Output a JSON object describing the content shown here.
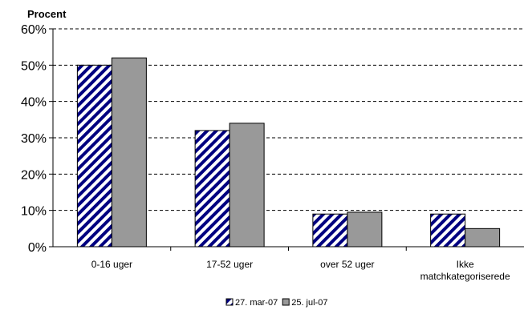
{
  "chart_data": {
    "type": "bar",
    "ylabel": "Procent",
    "categories": [
      "0-16 uger",
      "17-52 uger",
      "over 52 uger",
      "Ikke matchkategoriserede"
    ],
    "category_lines": [
      [
        "0-16 uger"
      ],
      [
        "17-52 uger"
      ],
      [
        "over 52 uger"
      ],
      [
        "Ikke",
        "matchkategoriserede"
      ]
    ],
    "series": [
      {
        "name": "27. mar-07",
        "values": [
          50,
          32,
          9,
          9
        ],
        "pattern": "navy-diagonal-stripes",
        "color": "#000080"
      },
      {
        "name": "25. jul-07",
        "values": [
          52,
          34,
          9.5,
          5
        ],
        "pattern": "solid",
        "color": "#999999"
      }
    ],
    "yticks": [
      "0%",
      "10%",
      "20%",
      "30%",
      "40%",
      "50%",
      "60%"
    ],
    "ylim": [
      0,
      60
    ],
    "grid": "dashed horizontal",
    "legend_position": "bottom-center"
  }
}
